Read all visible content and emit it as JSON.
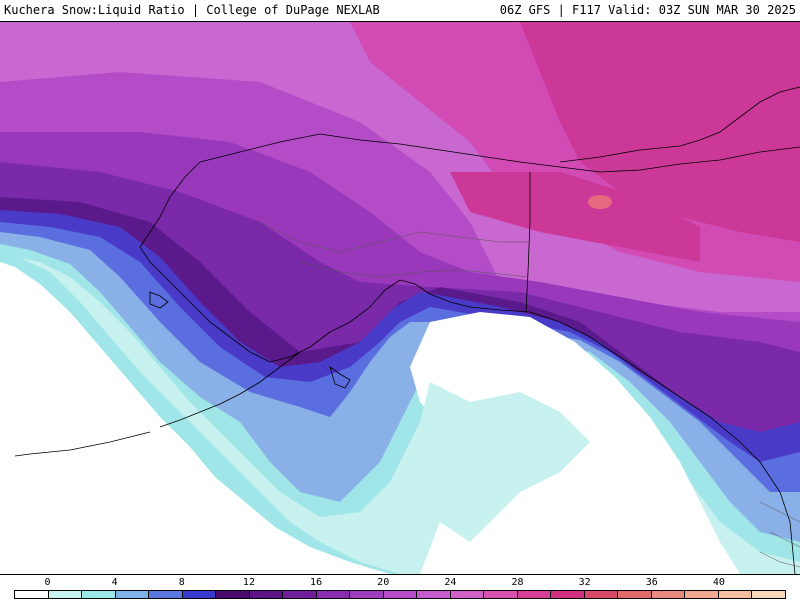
{
  "header": {
    "left_title": "Kuchera Snow:Liquid Ratio | College of DuPage NEXLAB",
    "right_title": "06Z GFS | F117 Valid: 03Z SUN MAR 30 2025"
  },
  "colorbar": {
    "tick_labels": [
      "0",
      "4",
      "8",
      "12",
      "16",
      "20",
      "24",
      "28",
      "32",
      "36",
      "40"
    ],
    "swatch_colors": [
      "#ffffff",
      "#c8f4f0",
      "#9be8e8",
      "#7fb2e6",
      "#5a78e0",
      "#3a3ad0",
      "#4a0a6e",
      "#5e1388",
      "#721f9e",
      "#8a2cb2",
      "#a03cc0",
      "#b84ccc",
      "#c85ad0",
      "#d060c8",
      "#d850b0",
      "#d84098",
      "#d0307e",
      "#d84a6a",
      "#e06a6a",
      "#e88a80",
      "#f0a890",
      "#f6c0a0",
      "#f8d8b8"
    ]
  },
  "map_layers": {
    "ocean_color": "#ffffff",
    "coast_color": "#000000",
    "colors": {
      "cyan_light": "#c6f1ee",
      "cyan": "#a0e6e8",
      "blue_light": "#8ab0e8",
      "blue": "#5a6ee0",
      "indigo": "#4a3ac8",
      "purple_dark": "#5a1a8c",
      "purple": "#7a2aa8",
      "violet": "#9a38bc",
      "magenta_purple": "#b44cc8",
      "orchid": "#c868d0",
      "pink_magenta": "#d24ab4",
      "magenta": "#cc3898",
      "hotspot": "#e86a80"
    }
  }
}
